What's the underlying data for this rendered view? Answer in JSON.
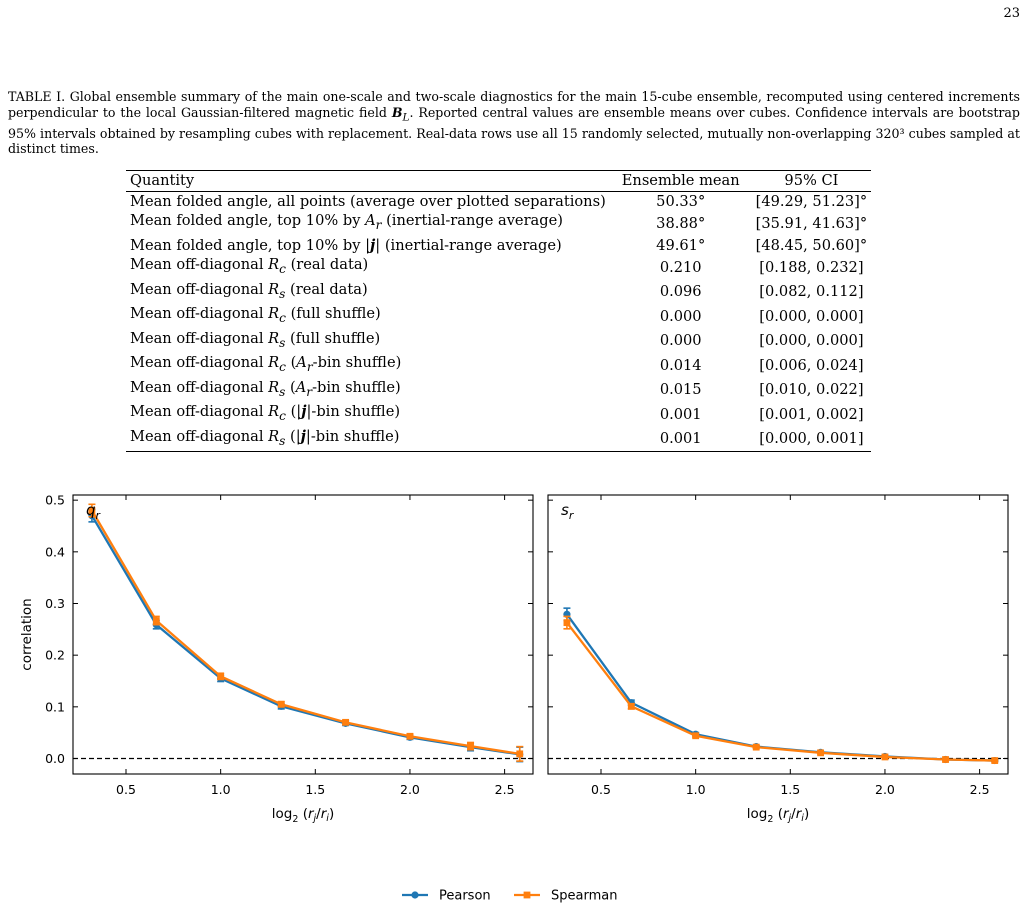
{
  "page_number": "23",
  "caption": {
    "label": "TABLE I.",
    "text": "Global ensemble summary of the main one-scale and two-scale diagnostics for the main 15-cube ensemble, recomputed using centered increments perpendicular to the local Gaussian-filtered magnetic field B_L. Reported central values are ensemble means over cubes. Confidence intervals are bootstrap 95% intervals obtained by resampling cubes with replacement. Real-data rows use all 15 randomly selected, mutually non-overlapping 320³ cubes sampled at distinct times."
  },
  "table": {
    "headers": [
      "Quantity",
      "Ensemble mean",
      "95% CI"
    ],
    "rows": [
      [
        "Mean folded angle, all points (average over plotted separations)",
        "50.33°",
        "[49.29, 51.23]°"
      ],
      [
        "Mean folded angle, top 10% by A_r (inertial-range average)",
        "38.88°",
        "[35.91, 41.63]°"
      ],
      [
        "Mean folded angle, top 10% by |j| (inertial-range average)",
        "49.61°",
        "[48.45, 50.60]°"
      ],
      [
        "Mean off-diagonal R_c (real data)",
        "0.210",
        "[0.188, 0.232]"
      ],
      [
        "Mean off-diagonal R_s (real data)",
        "0.096",
        "[0.082, 0.112]"
      ],
      [
        "Mean off-diagonal R_c (full shuffle)",
        "0.000",
        "[0.000, 0.000]"
      ],
      [
        "Mean off-diagonal R_s (full shuffle)",
        "0.000",
        "[0.000, 0.000]"
      ],
      [
        "Mean off-diagonal R_c (A_r-bin shuffle)",
        "0.014",
        "[0.006, 0.024]"
      ],
      [
        "Mean off-diagonal R_s (A_r-bin shuffle)",
        "0.015",
        "[0.010, 0.022]"
      ],
      [
        "Mean off-diagonal R_c (|j|-bin shuffle)",
        "0.001",
        "[0.001, 0.002]"
      ],
      [
        "Mean off-diagonal R_s (|j|-bin shuffle)",
        "0.001",
        "[0.000, 0.001]"
      ]
    ]
  },
  "chart_data": [
    {
      "type": "line",
      "panel_label": "q_r",
      "xlabel": "log2 (rj/ri)",
      "ylabel": "correlation",
      "xlim": [
        0.22,
        2.65
      ],
      "ylim": [
        -0.03,
        0.51
      ],
      "xticks": [
        0.5,
        1.0,
        1.5,
        2.0,
        2.5
      ],
      "yticks": [
        0.0,
        0.1,
        0.2,
        0.3,
        0.4,
        0.5
      ],
      "reference_line_y": 0.0,
      "x": [
        0.32,
        0.66,
        1.0,
        1.32,
        1.66,
        2.0,
        2.32,
        2.58
      ],
      "series": [
        {
          "name": "Pearson",
          "color": "#1f77b4",
          "marker": "circle",
          "values": [
            0.47,
            0.259,
            0.155,
            0.101,
            0.068,
            0.041,
            0.022,
            0.008
          ],
          "errors": [
            0.012,
            0.008,
            0.006,
            0.005,
            0.004,
            0.004,
            0.007,
            0.014
          ]
        },
        {
          "name": "Spearman",
          "color": "#ff7f0e",
          "marker": "square",
          "values": [
            0.48,
            0.267,
            0.159,
            0.105,
            0.07,
            0.043,
            0.024,
            0.009
          ],
          "errors": [
            0.012,
            0.008,
            0.006,
            0.005,
            0.004,
            0.004,
            0.007,
            0.014
          ]
        }
      ]
    },
    {
      "type": "line",
      "panel_label": "s_r",
      "xlabel": "log2 (rj/ri)",
      "ylabel": "",
      "xlim": [
        0.22,
        2.65
      ],
      "ylim": [
        -0.03,
        0.51
      ],
      "xticks": [
        0.5,
        1.0,
        1.5,
        2.0,
        2.5
      ],
      "yticks": [
        0.0,
        0.1,
        0.2,
        0.3,
        0.4,
        0.5
      ],
      "reference_line_y": 0.0,
      "x": [
        0.32,
        0.66,
        1.0,
        1.32,
        1.66,
        2.0,
        2.32,
        2.58
      ],
      "series": [
        {
          "name": "Pearson",
          "color": "#1f77b4",
          "marker": "circle",
          "values": [
            0.279,
            0.108,
            0.047,
            0.023,
            0.012,
            0.004,
            -0.002,
            -0.004
          ],
          "errors": [
            0.012,
            0.005,
            0.003,
            0.002,
            0.002,
            0.002,
            0.002,
            0.002
          ]
        },
        {
          "name": "Spearman",
          "color": "#ff7f0e",
          "marker": "square",
          "values": [
            0.263,
            0.101,
            0.044,
            0.022,
            0.011,
            0.003,
            -0.002,
            -0.004
          ],
          "errors": [
            0.012,
            0.005,
            0.003,
            0.002,
            0.002,
            0.002,
            0.002,
            0.002
          ]
        }
      ]
    }
  ],
  "legend": {
    "placement": "bottom-center",
    "entries": [
      "Pearson",
      "Spearman"
    ],
    "colors": [
      "#1f77b4",
      "#ff7f0e"
    ]
  }
}
